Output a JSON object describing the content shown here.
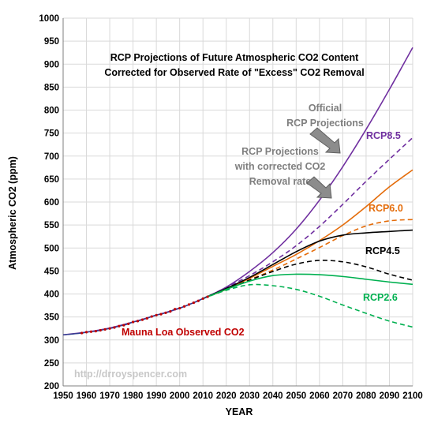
{
  "chart_data": {
    "type": "line",
    "title_lines": [
      "RCP Projections of Future Atmospheric CO2 Content",
      "Corrected for Observed Rate of \"Excess\" CO2 Removal"
    ],
    "xlabel": "YEAR",
    "ylabel": "Atmospheric CO2 (ppm)",
    "xlim": [
      1950,
      2100
    ],
    "ylim": [
      200,
      1000
    ],
    "x_ticks": [
      1950,
      1960,
      1970,
      1980,
      1990,
      2000,
      2010,
      2020,
      2030,
      2040,
      2050,
      2060,
      2070,
      2080,
      2090,
      2100
    ],
    "y_ticks": [
      200,
      250,
      300,
      350,
      400,
      450,
      500,
      550,
      600,
      650,
      700,
      750,
      800,
      850,
      900,
      950,
      1000
    ],
    "grid": true,
    "colors": {
      "rcp85": "#7030a0",
      "rcp60": "#e46c0a",
      "rcp45": "#000000",
      "rcp26": "#00b050",
      "mauna_loa": "#c00000",
      "trend": "#2f3f8f",
      "gray": "#808080"
    },
    "annotations": {
      "official_lines": [
        "Official",
        "RCP Projections"
      ],
      "corrected_lines": [
        "RCP Projections",
        "with corrected CO2",
        "Removal rate"
      ],
      "mauna_loa_label": "Mauna Loa Observed CO2",
      "watermark": "http://drroyspencer.com"
    },
    "series": [
      {
        "name": "RCP8.5",
        "key": "rcp85",
        "style": "solid",
        "x": [
          1950,
          1960,
          1970,
          1980,
          1990,
          2000,
          2010,
          2020,
          2030,
          2040,
          2050,
          2060,
          2070,
          2080,
          2090,
          2100
        ],
        "y": [
          311,
          317,
          326,
          339,
          354,
          369,
          390,
          415,
          449,
          490,
          541,
          604,
          677,
          758,
          845,
          936
        ]
      },
      {
        "name": "",
        "key": "rcp85",
        "style": "dashed",
        "x": [
          2010,
          2020,
          2030,
          2040,
          2050,
          2060,
          2070,
          2080,
          2090,
          2100
        ],
        "y": [
          390,
          414,
          440,
          470,
          505,
          547,
          595,
          645,
          693,
          740
        ]
      },
      {
        "name": "RCP6.0",
        "key": "rcp60",
        "style": "solid",
        "x": [
          2010,
          2020,
          2030,
          2040,
          2050,
          2060,
          2070,
          2080,
          2090,
          2100
        ],
        "y": [
          390,
          410,
          434,
          460,
          486,
          516,
          550,
          590,
          633,
          670
        ]
      },
      {
        "name": "",
        "key": "rcp60",
        "style": "dashed",
        "x": [
          2010,
          2020,
          2030,
          2040,
          2050,
          2060,
          2070,
          2080,
          2090,
          2100
        ],
        "y": [
          390,
          410,
          431,
          452,
          476,
          501,
          527,
          548,
          559,
          562
        ]
      },
      {
        "name": "RCP4.5",
        "key": "rcp45",
        "style": "solid",
        "x": [
          2010,
          2020,
          2030,
          2040,
          2050,
          2060,
          2070,
          2080,
          2090,
          2100
        ],
        "y": [
          390,
          412,
          436,
          464,
          492,
          515,
          528,
          533,
          536,
          539
        ]
      },
      {
        "name": "",
        "key": "rcp45",
        "style": "dashed",
        "x": [
          2010,
          2020,
          2030,
          2040,
          2050,
          2060,
          2070,
          2080,
          2090,
          2100
        ],
        "y": [
          390,
          410,
          430,
          449,
          465,
          473,
          470,
          459,
          443,
          430
        ]
      },
      {
        "name": "RCP2.6",
        "key": "rcp26",
        "style": "solid",
        "x": [
          2010,
          2020,
          2030,
          2040,
          2050,
          2060,
          2070,
          2080,
          2090,
          2100
        ],
        "y": [
          390,
          410,
          428,
          440,
          443,
          442,
          438,
          432,
          426,
          421
        ]
      },
      {
        "name": "",
        "key": "rcp26",
        "style": "dashed",
        "x": [
          2010,
          2020,
          2030,
          2040,
          2050,
          2060,
          2070,
          2080,
          2090,
          2100
        ],
        "y": [
          390,
          408,
          420,
          418,
          410,
          395,
          376,
          358,
          341,
          328
        ]
      },
      {
        "name": "Mauna Loa Observed CO2",
        "key": "mauna_loa",
        "style": "markers",
        "x": [
          1958,
          1960,
          1962,
          1964,
          1966,
          1968,
          1970,
          1972,
          1974,
          1976,
          1978,
          1980,
          1982,
          1984,
          1986,
          1988,
          1990,
          1992,
          1994,
          1996,
          1998,
          2000,
          2002,
          2004,
          2006,
          2008,
          2010,
          2012
        ],
        "y": [
          315,
          317,
          318,
          319,
          321,
          323,
          325,
          327,
          330,
          332,
          335,
          339,
          341,
          344,
          347,
          351,
          354,
          356,
          359,
          362,
          367,
          369,
          373,
          377,
          381,
          385,
          390,
          394
        ]
      }
    ]
  }
}
